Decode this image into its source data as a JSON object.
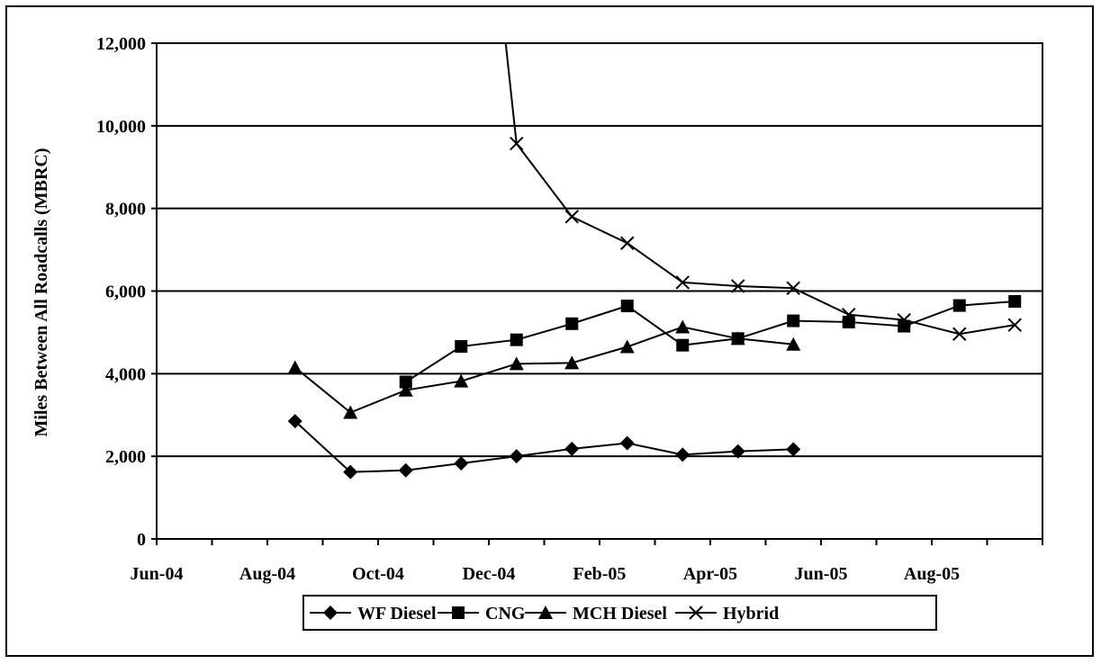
{
  "chart_data": {
    "type": "line",
    "title": "",
    "xlabel": "",
    "ylabel": "Miles Between All Roadcalls (MBRC)",
    "x_tick_labels": [
      "Jun-04",
      "Aug-04",
      "Oct-04",
      "Dec-04",
      "Feb-05",
      "Apr-05",
      "Jun-05",
      "Aug-05"
    ],
    "y_tick_labels": [
      "0",
      "2,000",
      "4,000",
      "6,000",
      "8,000",
      "10,000",
      "12,000"
    ],
    "ylim": [
      0,
      12000
    ],
    "x_categories": [
      "Jun-04",
      "Jul-04",
      "Aug-04",
      "Sep-04",
      "Oct-04",
      "Nov-04",
      "Dec-04",
      "Jan-05",
      "Feb-05",
      "Mar-05",
      "Apr-05",
      "May-05",
      "Jun-05",
      "Jul-05",
      "Aug-05",
      "Sep-05"
    ],
    "grid": "horizontal major gridlines",
    "legend_position": "bottom",
    "series": [
      {
        "name": "WF Diesel",
        "marker": "diamond",
        "points": [
          {
            "x": "Aug-04",
            "y": 2850
          },
          {
            "x": "Sep-04",
            "y": 1620
          },
          {
            "x": "Oct-04",
            "y": 1660
          },
          {
            "x": "Nov-04",
            "y": 1830
          },
          {
            "x": "Dec-04",
            "y": 2000
          },
          {
            "x": "Jan-05",
            "y": 2180
          },
          {
            "x": "Feb-05",
            "y": 2320
          },
          {
            "x": "Mar-05",
            "y": 2040
          },
          {
            "x": "Apr-05",
            "y": 2120
          },
          {
            "x": "May-05",
            "y": 2170
          }
        ]
      },
      {
        "name": "CNG",
        "marker": "square",
        "points": [
          {
            "x": "Oct-04",
            "y": 3800
          },
          {
            "x": "Nov-04",
            "y": 4660
          },
          {
            "x": "Dec-04",
            "y": 4820
          },
          {
            "x": "Jan-05",
            "y": 5210
          },
          {
            "x": "Feb-05",
            "y": 5640
          },
          {
            "x": "Mar-05",
            "y": 4690
          },
          {
            "x": "Apr-05",
            "y": 4850
          },
          {
            "x": "May-05",
            "y": 5280
          },
          {
            "x": "Jun-05",
            "y": 5250
          },
          {
            "x": "Jul-05",
            "y": 5150
          },
          {
            "x": "Aug-05",
            "y": 5650
          },
          {
            "x": "Sep-05",
            "y": 5750
          }
        ]
      },
      {
        "name": "MCH Diesel",
        "marker": "triangle",
        "points": [
          {
            "x": "Aug-04",
            "y": 4150
          },
          {
            "x": "Sep-04",
            "y": 3060
          },
          {
            "x": "Oct-04",
            "y": 3600
          },
          {
            "x": "Nov-04",
            "y": 3820
          },
          {
            "x": "Dec-04",
            "y": 4240
          },
          {
            "x": "Jan-05",
            "y": 4260
          },
          {
            "x": "Feb-05",
            "y": 4650
          },
          {
            "x": "Mar-05",
            "y": 5130
          },
          {
            "x": "Apr-05",
            "y": 4850
          },
          {
            "x": "May-05",
            "y": 4710
          }
        ]
      },
      {
        "name": "Hybrid",
        "marker": "x",
        "line_enters_from_above": true,
        "points": [
          {
            "x": "Dec-04",
            "y": 9570
          },
          {
            "x": "Jan-05",
            "y": 7800
          },
          {
            "x": "Feb-05",
            "y": 7160
          },
          {
            "x": "Mar-05",
            "y": 6210
          },
          {
            "x": "Apr-05",
            "y": 6120
          },
          {
            "x": "May-05",
            "y": 6070
          },
          {
            "x": "Jun-05",
            "y": 5430
          },
          {
            "x": "Jul-05",
            "y": 5300
          },
          {
            "x": "Aug-05",
            "y": 4960
          },
          {
            "x": "Sep-05",
            "y": 5180
          }
        ]
      }
    ]
  }
}
